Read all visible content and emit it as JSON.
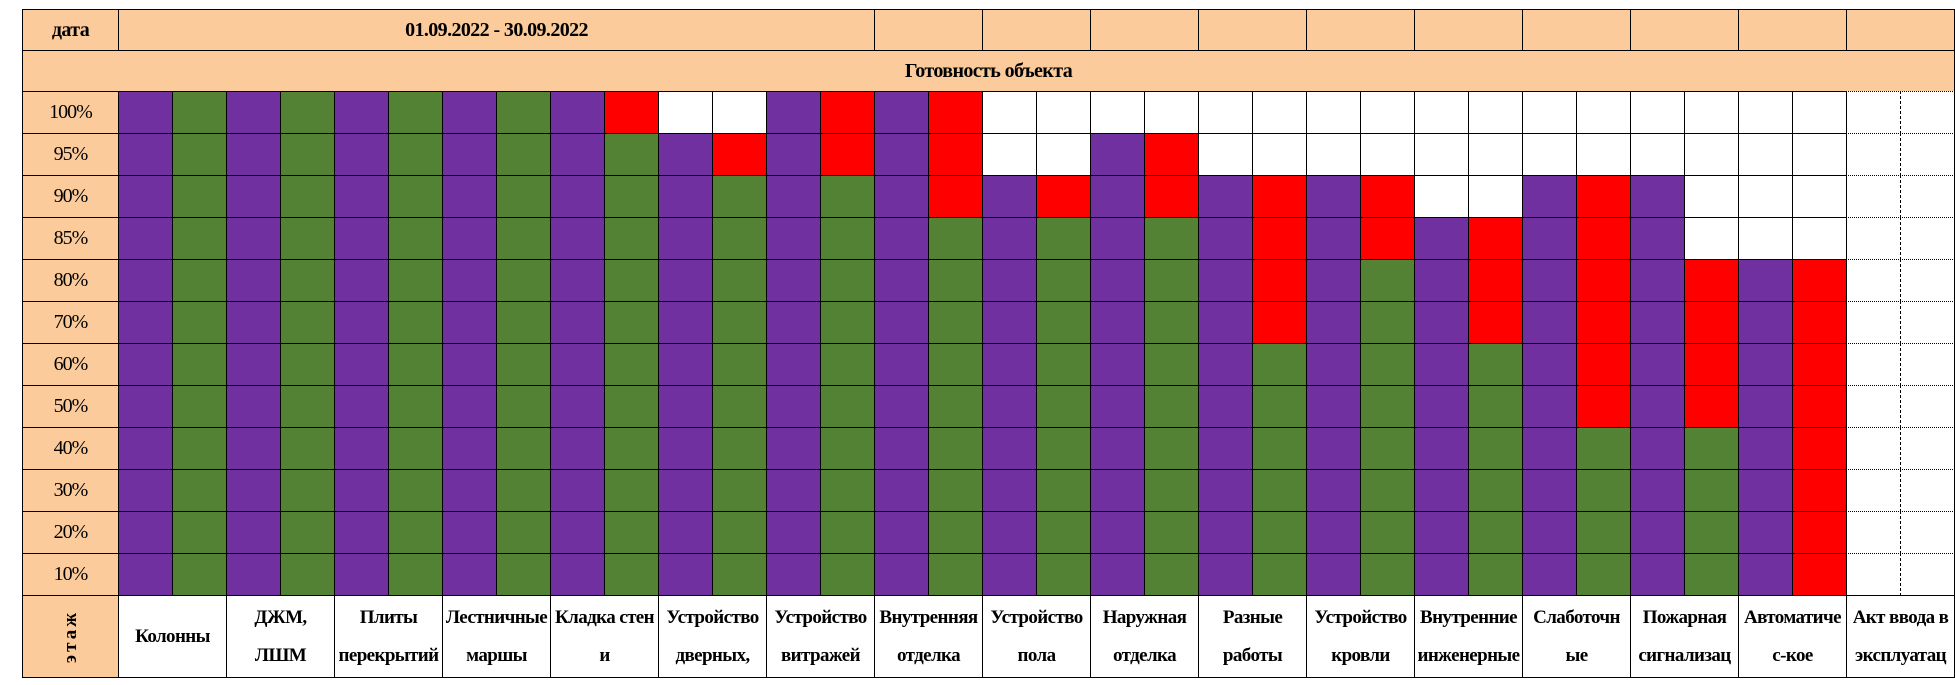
{
  "header": {
    "date_label": "дата",
    "period": "01.09.2022 - 30.09.2022"
  },
  "title": "Готовность объекта",
  "row_labels": [
    "100%",
    "95%",
    "90%",
    "85%",
    "80%",
    "70%",
    "60%",
    "50%",
    "40%",
    "30%",
    "20%",
    "10%"
  ],
  "floor_label": "этаж",
  "columns": [
    [
      "Колонны"
    ],
    [
      "ДЖМ,",
      "ЛШМ"
    ],
    [
      "Плиты",
      "перекрытий"
    ],
    [
      "Лестничные",
      "маршы"
    ],
    [
      "Кладка стен",
      "и"
    ],
    [
      "Устройство",
      "дверных,"
    ],
    [
      "Устройство",
      "витражей"
    ],
    [
      "Внутренняя",
      "отделка"
    ],
    [
      "Устройство",
      "пола"
    ],
    [
      "Наружная",
      "отделка"
    ],
    [
      "Разные",
      "работы"
    ],
    [
      "Устройство",
      "кровли"
    ],
    [
      "Внутренние",
      "инженерные"
    ],
    [
      "Слаботочн",
      "ые"
    ],
    [
      "Пожарная",
      "сигнализац"
    ],
    [
      "Автоматиче",
      "с-кое"
    ],
    [
      "Акт ввода в",
      "эксплуатац"
    ]
  ],
  "palette": {
    "P": "#7030a0",
    "G": "#548235",
    "R": "#ff0000",
    "W": "#ffffff"
  },
  "cells": [
    "PGPGPGPGPRWWPRPRWWWWWWWWWWWWWWWWWW",
    "PGPGPGPGPGPRPRPRWWPRWWWWWWWWWWWWWW",
    "PGPGPGPGPGPGPGPRPRPRPRPRWWPRPWWWWW",
    "PGPGPGPGPGPGPGPGPGPGPRPRPRPRPWWWWW",
    "PGPGPGPGPGPGPGPGPGPGPRPGPRPRPRPRWW",
    "PGPGPGPGPGPGPGPGPGPGPRPGPRPRPRPRWW",
    "PGPGPGPGPGPGPGPGPGPGPGPGPGPRPRPRWW",
    "PGPGPGPGPGPGPGPGPGPGPGPGPGPRPRPRWW",
    "PGPGPGPGPGPGPGPGPGPGPGPGPGPGPGPRWW",
    "PGPGPGPGPGPGPGPGPGPGPGPGPGPGPGPRWW",
    "PGPGPGPGPGPGPGPGPGPGPGPGPGPGPGPRWW",
    "PGPGPGPGPGPGPGPGPGPGPGPGPGPGPGPRWW"
  ]
}
